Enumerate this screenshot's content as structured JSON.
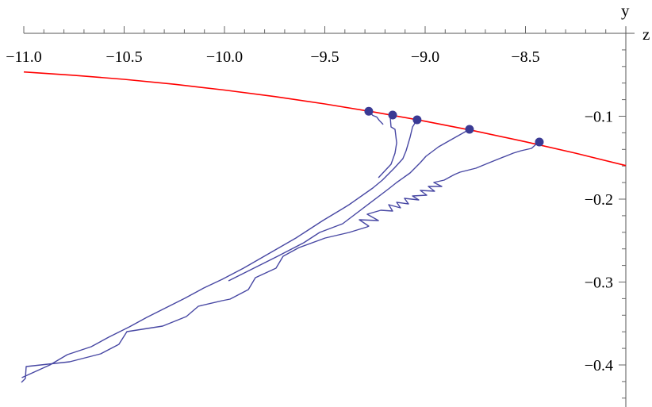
{
  "chart_data": {
    "type": "line",
    "title": "",
    "xlabel": "z",
    "ylabel": "y",
    "xlim": [
      -11.0,
      -8.0
    ],
    "ylim": [
      -0.45,
      0.0
    ],
    "x_axis_position": "top",
    "y_axis_position": "right",
    "grid": false,
    "x_ticks": [
      -11.0,
      -10.5,
      -10.0,
      -9.5,
      -9.0,
      -8.5
    ],
    "x_tick_labels": [
      "−11.0",
      "−10.5",
      "−10.0",
      "−9.5",
      "−9.0",
      "−8.5"
    ],
    "y_ticks": [
      -0.1,
      -0.2,
      -0.3,
      -0.4
    ],
    "y_tick_labels": [
      "−0.1",
      "−0.2",
      "−0.3",
      "−0.4"
    ],
    "colors": {
      "curve": "#ff0000",
      "trajectories": "#4747a3",
      "markers": "#3a3a94"
    },
    "curve": {
      "z": [
        -11.0,
        -10.75,
        -10.5,
        -10.25,
        -10.0,
        -9.75,
        -9.5,
        -9.25,
        -9.0,
        -8.75,
        -8.5,
        -8.25,
        -8.0
      ],
      "y": [
        -0.0466,
        -0.0506,
        -0.0555,
        -0.0614,
        -0.0684,
        -0.0763,
        -0.0852,
        -0.0951,
        -0.106,
        -0.1179,
        -0.1308,
        -0.1446,
        -0.1595
      ]
    },
    "markers": [
      [
        -9.281,
        -0.094
      ],
      [
        -9.162,
        -0.0986
      ],
      [
        -9.04,
        -0.1043
      ],
      [
        -8.779,
        -0.1158
      ],
      [
        -8.431,
        -0.1311
      ]
    ],
    "trajectories": [
      [
        [
          -9.281,
          -0.094
        ],
        [
          -9.261,
          -0.099
        ],
        [
          -9.241,
          -0.101
        ],
        [
          -9.229,
          -0.105
        ],
        [
          -9.209,
          -0.11
        ]
      ],
      [
        [
          -9.162,
          -0.0986
        ],
        [
          -9.174,
          -0.1014
        ],
        [
          -9.17,
          -0.1129
        ],
        [
          -9.15,
          -0.1158
        ],
        [
          -9.142,
          -0.1321
        ],
        [
          -9.15,
          -0.1445
        ],
        [
          -9.17,
          -0.1579
        ],
        [
          -9.233,
          -0.1742
        ]
      ],
      [
        [
          -9.04,
          -0.1043
        ],
        [
          -9.043,
          -0.1053
        ],
        [
          -9.063,
          -0.1129
        ],
        [
          -9.075,
          -0.1254
        ],
        [
          -9.095,
          -0.1416
        ],
        [
          -9.111,
          -0.1512
        ],
        [
          -9.154,
          -0.1627
        ],
        [
          -9.213,
          -0.177
        ],
        [
          -9.261,
          -0.1866
        ],
        [
          -9.379,
          -0.2067
        ],
        [
          -9.411,
          -0.2115
        ],
        [
          -9.51,
          -0.2258
        ],
        [
          -9.644,
          -0.2469
        ],
        [
          -9.905,
          -0.2833
        ],
        [
          -10.012,
          -0.2967
        ],
        [
          -10.103,
          -0.3072
        ],
        [
          -10.198,
          -0.3196
        ],
        [
          -10.387,
          -0.3426
        ],
        [
          -10.474,
          -0.3541
        ],
        [
          -10.577,
          -0.3665
        ],
        [
          -10.664,
          -0.378
        ],
        [
          -10.783,
          -0.3876
        ],
        [
          -10.87,
          -0.4
        ],
        [
          -11.01,
          -0.4153
        ]
      ],
      [
        [
          -8.779,
          -0.1158
        ],
        [
          -8.814,
          -0.1206
        ],
        [
          -8.877,
          -0.1292
        ],
        [
          -8.933,
          -0.1368
        ],
        [
          -8.996,
          -0.1483
        ],
        [
          -9.024,
          -0.156
        ],
        [
          -9.075,
          -0.1684
        ],
        [
          -9.142,
          -0.1799
        ],
        [
          -9.182,
          -0.1876
        ],
        [
          -9.411,
          -0.2297
        ],
        [
          -9.526,
          -0.2402
        ],
        [
          -9.605,
          -0.2526
        ],
        [
          -9.735,
          -0.2689
        ],
        [
          -9.98,
          -0.2986
        ]
      ],
      [
        [
          -8.431,
          -0.1311
        ],
        [
          -8.439,
          -0.1321
        ],
        [
          -8.47,
          -0.1388
        ],
        [
          -8.522,
          -0.1416
        ],
        [
          -8.561,
          -0.1445
        ],
        [
          -8.68,
          -0.156
        ],
        [
          -8.747,
          -0.1627
        ],
        [
          -8.826,
          -0.1675
        ],
        [
          -8.854,
          -0.1703
        ],
        [
          -8.905,
          -0.177
        ],
        [
          -8.957,
          -0.1799
        ],
        [
          -8.917,
          -0.1847
        ],
        [
          -8.984,
          -0.1847
        ],
        [
          -8.953,
          -0.1904
        ],
        [
          -9.024,
          -0.1895
        ],
        [
          -8.992,
          -0.1952
        ],
        [
          -9.063,
          -0.1962
        ],
        [
          -9.032,
          -0.201
        ],
        [
          -9.103,
          -0.199
        ],
        [
          -9.083,
          -0.2057
        ],
        [
          -9.142,
          -0.2038
        ],
        [
          -9.123,
          -0.2105
        ],
        [
          -9.182,
          -0.2067
        ],
        [
          -9.162,
          -0.2144
        ],
        [
          -9.221,
          -0.2134
        ],
        [
          -9.289,
          -0.2182
        ],
        [
          -9.233,
          -0.2258
        ],
        [
          -9.328,
          -0.2249
        ],
        [
          -9.281,
          -0.2325
        ],
        [
          -9.289,
          -0.2335
        ],
        [
          -9.379,
          -0.2402
        ],
        [
          -9.498,
          -0.2469
        ],
        [
          -9.628,
          -0.2584
        ],
        [
          -9.708,
          -0.2689
        ],
        [
          -9.743,
          -0.2833
        ],
        [
          -9.846,
          -0.2947
        ],
        [
          -9.881,
          -0.3091
        ],
        [
          -9.972,
          -0.3206
        ],
        [
          -10.012,
          -0.3225
        ],
        [
          -10.13,
          -0.3292
        ],
        [
          -10.19,
          -0.3416
        ],
        [
          -10.308,
          -0.3531
        ],
        [
          -10.486,
          -0.3598
        ],
        [
          -10.526,
          -0.3751
        ],
        [
          -10.617,
          -0.3866
        ],
        [
          -10.771,
          -0.3962
        ],
        [
          -10.988,
          -0.4019
        ],
        [
          -10.992,
          -0.4163
        ],
        [
          -11.012,
          -0.4211
        ]
      ]
    ]
  }
}
